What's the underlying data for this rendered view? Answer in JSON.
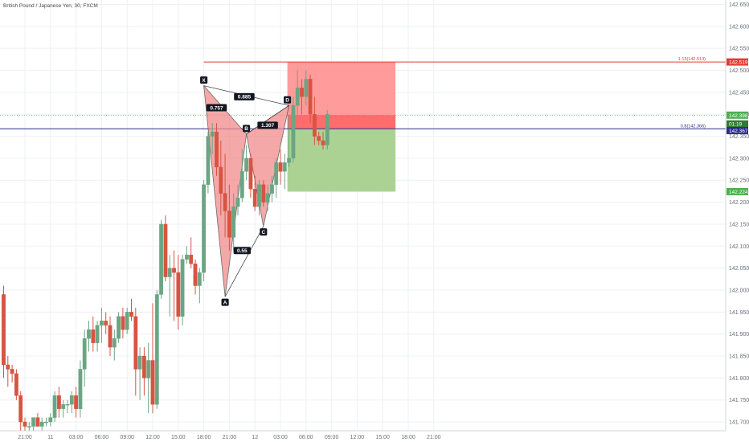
{
  "title": "British Pound / Japanese Yen, 30, FXCM",
  "colors": {
    "up": "#6ba583",
    "down": "#d75442",
    "pattern_fill": "#f28b8b",
    "pattern_stroke": "#3a3a3a",
    "stop_zone": "#ff8a8a",
    "stop_zone_dark": "#ff4d4d",
    "target_zone": "#a8d08d",
    "grid": "#eef0f4",
    "red_line": "#e53935",
    "blue_line": "#2c2c8c",
    "green_price": "#4caf50",
    "dark_label": "#131722"
  },
  "chart_data": {
    "type": "candlestick",
    "title": "British Pound / Japanese Yen, 30, FXCM",
    "ylim": [
      141.68,
      142.66
    ],
    "y_ticks": [
      "142.650",
      "142.600",
      "142.550",
      "142.500",
      "142.450",
      "142.400",
      "142.350",
      "142.300",
      "142.250",
      "142.200",
      "142.150",
      "142.100",
      "142.050",
      "142.000",
      "141.950",
      "141.900",
      "141.850",
      "141.800",
      "141.750",
      "141.700"
    ],
    "x_ticks": [
      {
        "label": "21:00",
        "bar": 5
      },
      {
        "label": "11",
        "bar": 11
      },
      {
        "label": "03:00",
        "bar": 17
      },
      {
        "label": "06:00",
        "bar": 23
      },
      {
        "label": "09:00",
        "bar": 29
      },
      {
        "label": "12:00",
        "bar": 35
      },
      {
        "label": "15:00",
        "bar": 41
      },
      {
        "label": "18:00",
        "bar": 47
      },
      {
        "label": "21:00",
        "bar": 53
      },
      {
        "label": "12",
        "bar": 59
      },
      {
        "label": "03:00",
        "bar": 65
      },
      {
        "label": "06:00",
        "bar": 71
      },
      {
        "label": "09:00",
        "bar": 77
      },
      {
        "label": "12:00",
        "bar": 83
      },
      {
        "label": "15:00",
        "bar": 89
      },
      {
        "label": "18:00",
        "bar": 95
      },
      {
        "label": "21:00",
        "bar": 101
      }
    ],
    "candles": [
      [
        141.99,
        142.01,
        141.8,
        141.83
      ],
      [
        141.83,
        141.85,
        141.78,
        141.82
      ],
      [
        141.82,
        141.83,
        141.79,
        141.81
      ],
      [
        141.81,
        141.82,
        141.75,
        141.76
      ],
      [
        141.76,
        141.77,
        141.68,
        141.7
      ],
      [
        141.7,
        141.71,
        141.68,
        141.69
      ],
      [
        141.69,
        141.7,
        141.68,
        141.69
      ],
      [
        141.69,
        141.71,
        141.68,
        141.71
      ],
      [
        141.71,
        141.72,
        141.69,
        141.69
      ],
      [
        141.69,
        141.71,
        141.68,
        141.7
      ],
      [
        141.7,
        141.71,
        141.69,
        141.7
      ],
      [
        141.7,
        141.72,
        141.69,
        141.71
      ],
      [
        141.71,
        141.77,
        141.7,
        141.76
      ],
      [
        141.76,
        141.78,
        141.71,
        141.73
      ],
      [
        141.73,
        141.75,
        141.71,
        141.74
      ],
      [
        141.74,
        141.75,
        141.72,
        141.74
      ],
      [
        141.74,
        141.77,
        141.72,
        141.76
      ],
      [
        141.76,
        141.78,
        141.71,
        141.73
      ],
      [
        141.73,
        141.84,
        141.71,
        141.82
      ],
      [
        141.82,
        141.91,
        141.78,
        141.89
      ],
      [
        141.89,
        141.93,
        141.86,
        141.91
      ],
      [
        141.91,
        141.94,
        141.86,
        141.88
      ],
      [
        141.88,
        141.93,
        141.86,
        141.92
      ],
      [
        141.92,
        141.96,
        141.88,
        141.93
      ],
      [
        141.93,
        141.95,
        141.9,
        141.92
      ],
      [
        141.92,
        141.94,
        141.85,
        141.87
      ],
      [
        141.87,
        141.91,
        141.84,
        141.89
      ],
      [
        141.89,
        141.95,
        141.88,
        141.94
      ],
      [
        141.94,
        141.96,
        141.89,
        141.91
      ],
      [
        141.91,
        141.96,
        141.9,
        141.95
      ],
      [
        141.95,
        141.98,
        141.93,
        141.94
      ],
      [
        141.94,
        141.96,
        141.76,
        141.82
      ],
      [
        141.82,
        141.87,
        141.75,
        141.85
      ],
      [
        141.85,
        141.87,
        141.76,
        141.8
      ],
      [
        141.8,
        141.88,
        141.72,
        141.84
      ],
      [
        141.84,
        141.97,
        141.72,
        141.74
      ],
      [
        141.74,
        142.0,
        141.73,
        141.99
      ],
      [
        141.99,
        142.16,
        141.98,
        142.15
      ],
      [
        142.15,
        142.17,
        142.02,
        142.03
      ],
      [
        142.03,
        142.08,
        141.94,
        142.05
      ],
      [
        142.05,
        142.09,
        141.93,
        142.04
      ],
      [
        142.04,
        142.08,
        141.91,
        141.94
      ],
      [
        141.94,
        142.08,
        141.92,
        142.07
      ],
      [
        142.07,
        142.1,
        142.06,
        142.08
      ],
      [
        142.08,
        142.12,
        142.05,
        142.06
      ],
      [
        142.06,
        142.07,
        141.99,
        142.01
      ],
      [
        142.01,
        142.05,
        141.97,
        142.04
      ],
      [
        142.04,
        142.25,
        142.02,
        142.24
      ],
      [
        142.24,
        142.36,
        142.22,
        142.35
      ],
      [
        142.35,
        142.38,
        142.31,
        142.36
      ],
      [
        142.36,
        142.38,
        142.26,
        142.28
      ],
      [
        142.28,
        142.34,
        142.17,
        142.22
      ],
      [
        142.22,
        142.31,
        142.12,
        142.18
      ],
      [
        142.18,
        142.24,
        142.09,
        142.12
      ],
      [
        142.12,
        142.22,
        142.09,
        142.19
      ],
      [
        142.19,
        142.24,
        142.17,
        142.21
      ],
      [
        142.21,
        142.32,
        142.2,
        142.27
      ],
      [
        142.27,
        142.33,
        142.25,
        142.3
      ],
      [
        142.3,
        142.31,
        142.21,
        142.23
      ],
      [
        142.23,
        142.26,
        142.18,
        142.19
      ],
      [
        142.19,
        142.25,
        142.17,
        142.24
      ],
      [
        142.24,
        142.25,
        142.19,
        142.2
      ],
      [
        142.2,
        142.24,
        142.18,
        142.22
      ],
      [
        142.22,
        142.26,
        142.2,
        142.24
      ],
      [
        142.24,
        142.3,
        142.21,
        142.29
      ],
      [
        142.29,
        142.32,
        142.24,
        142.27
      ],
      [
        142.27,
        142.31,
        142.23,
        142.29
      ],
      [
        142.29,
        142.4,
        142.28,
        142.3
      ],
      [
        142.3,
        142.44,
        142.29,
        142.42
      ],
      [
        142.42,
        142.5,
        142.38,
        142.46
      ],
      [
        142.46,
        142.48,
        142.4,
        142.44
      ],
      [
        142.44,
        142.5,
        142.42,
        142.48
      ],
      [
        142.48,
        142.49,
        142.38,
        142.4
      ],
      [
        142.4,
        142.44,
        142.33,
        142.35
      ],
      [
        142.35,
        142.36,
        142.33,
        142.34
      ],
      [
        142.34,
        142.36,
        142.32,
        142.33
      ],
      [
        142.33,
        142.41,
        142.32,
        142.4
      ]
    ],
    "harmonic_pattern": {
      "points": [
        {
          "label": "X",
          "bar": 47,
          "price": 142.465
        },
        {
          "label": "A",
          "bar": 52,
          "price": 141.985
        },
        {
          "label": "B",
          "bar": 57,
          "price": 142.355
        },
        {
          "label": "C",
          "bar": 61,
          "price": 142.145
        },
        {
          "label": "D",
          "bar": 67,
          "price": 142.42
        }
      ],
      "ratios": [
        {
          "text": "0.757",
          "bar": 50,
          "price": 142.415
        },
        {
          "text": "0.885",
          "bar": 56.5,
          "price": 142.44
        },
        {
          "text": "1.307",
          "bar": 62,
          "price": 142.375
        },
        {
          "text": "0.55",
          "bar": 56,
          "price": 142.09
        }
      ]
    },
    "position": {
      "start_bar": 67,
      "end_bar": 92,
      "stop": 142.519,
      "entry": 142.367,
      "target": 142.224
    },
    "levels": [
      {
        "label": "1.13(142.513)",
        "price": 142.519,
        "badge": "142.519",
        "color": "red"
      },
      {
        "label": "0.8(142.366)",
        "price": 142.367,
        "badge": "142.367",
        "color": "blue"
      }
    ],
    "price_badges": [
      {
        "text": "142.398",
        "price": 142.398
      },
      {
        "text": "01:19",
        "price": 142.384
      },
      {
        "text": "142.224",
        "price": 142.224
      }
    ],
    "current_price": 142.398
  }
}
